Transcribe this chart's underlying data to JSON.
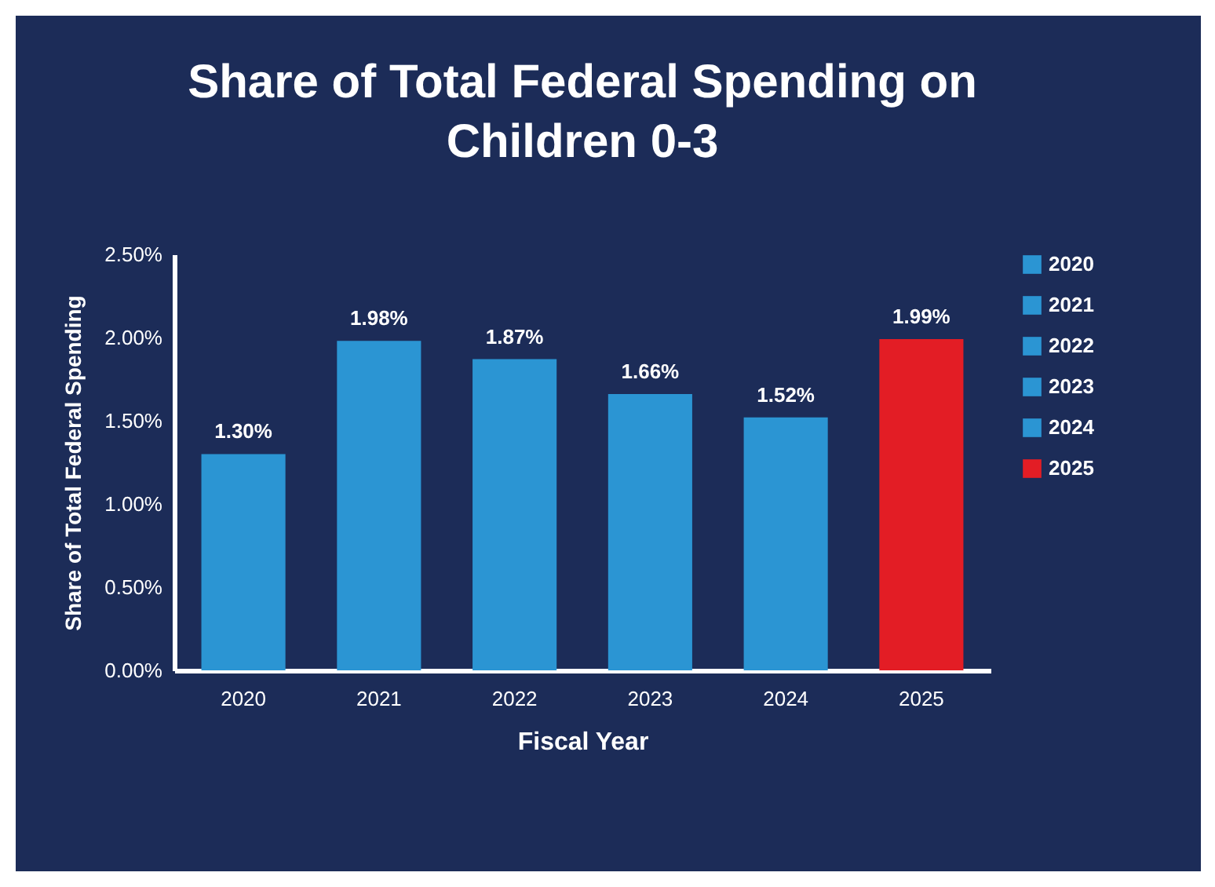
{
  "chart_data": {
    "type": "bar",
    "title": "Share of Total Federal Spending on Children 0-3",
    "xlabel": "Fiscal Year",
    "ylabel": "Share of Total Federal Spending",
    "categories": [
      "2020",
      "2021",
      "2022",
      "2023",
      "2024",
      "2025"
    ],
    "series": [
      {
        "name": "2020",
        "color": "#2b95d3",
        "values": [
          1.3,
          null,
          null,
          null,
          null,
          null
        ],
        "value_labels": [
          "1.30%",
          null,
          null,
          null,
          null,
          null
        ]
      },
      {
        "name": "2021",
        "color": "#2b95d3",
        "values": [
          null,
          1.98,
          null,
          null,
          null,
          null
        ],
        "value_labels": [
          null,
          "1.98%",
          null,
          null,
          null,
          null
        ]
      },
      {
        "name": "2022",
        "color": "#2b95d3",
        "values": [
          null,
          null,
          1.87,
          null,
          null,
          null
        ],
        "value_labels": [
          null,
          null,
          "1.87%",
          null,
          null,
          null
        ]
      },
      {
        "name": "2023",
        "color": "#2b95d3",
        "values": [
          null,
          null,
          null,
          1.66,
          null,
          null
        ],
        "value_labels": [
          null,
          null,
          null,
          "1.66%",
          null,
          null
        ]
      },
      {
        "name": "2024",
        "color": "#2b95d3",
        "values": [
          null,
          null,
          null,
          null,
          1.52,
          null
        ],
        "value_labels": [
          null,
          null,
          null,
          null,
          "1.52%",
          null
        ]
      },
      {
        "name": "2025",
        "color": "#e31d25",
        "values": [
          null,
          null,
          null,
          null,
          null,
          1.99
        ],
        "value_labels": [
          null,
          null,
          null,
          null,
          null,
          "1.99%"
        ]
      }
    ],
    "ylim": [
      0,
      2.5
    ],
    "yticks": [
      {
        "value": 0,
        "label": "0.00%"
      },
      {
        "value": 0.5,
        "label": "0.50%"
      },
      {
        "value": 1,
        "label": "1.00%"
      },
      {
        "value": 1.5,
        "label": "1.50%"
      },
      {
        "value": 2,
        "label": "2.00%"
      },
      {
        "value": 2.5,
        "label": "2.50%"
      }
    ],
    "grid": false,
    "legend": "right"
  }
}
